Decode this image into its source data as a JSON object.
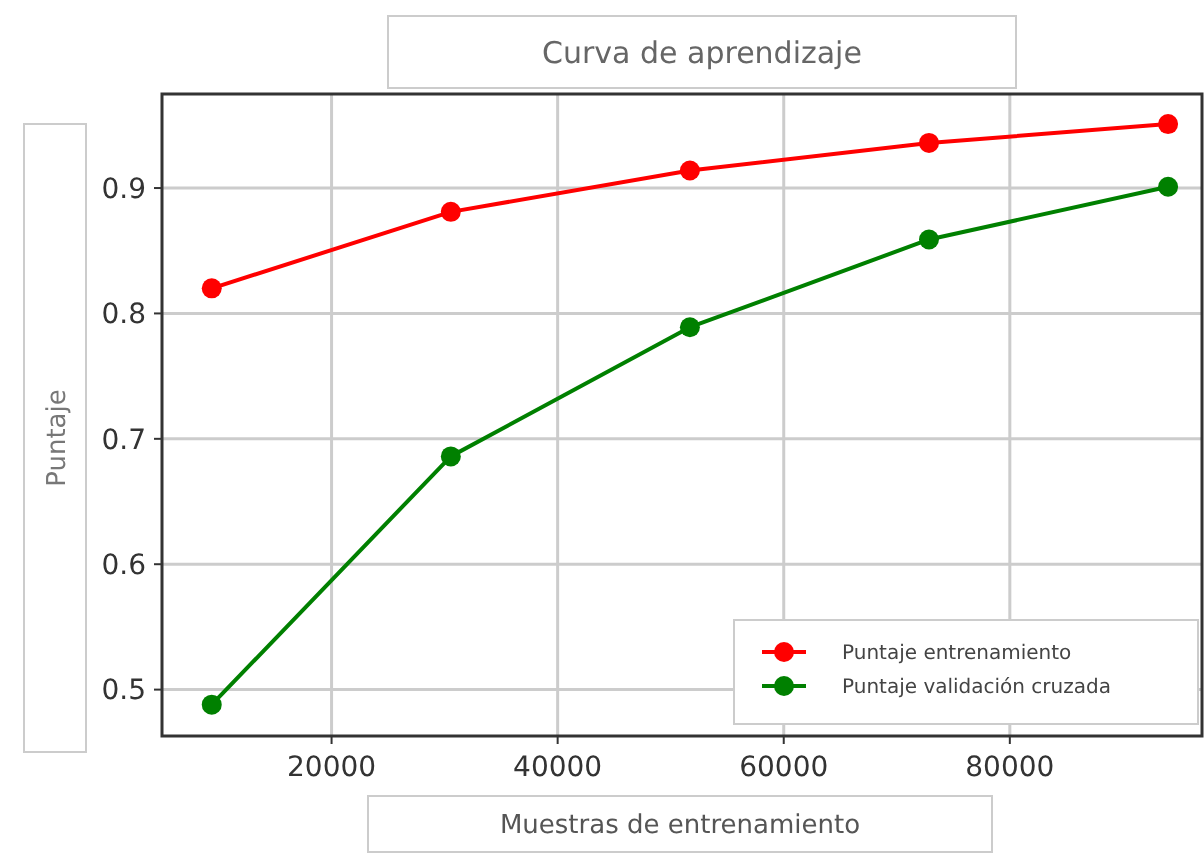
{
  "chart_data": {
    "type": "line",
    "title": "Curva de aprendizaje",
    "xlabel": "Muestras de entrenamiento",
    "ylabel": "Puntaje",
    "x": [
      9400,
      30550,
      51700,
      72850,
      94000
    ],
    "series": [
      {
        "name": "Puntaje entrenamiento",
        "color": "#ff0000",
        "values": [
          0.82,
          0.881,
          0.914,
          0.936,
          0.951
        ]
      },
      {
        "name": "Puntaje validación cruzada",
        "color": "#008000",
        "values": [
          0.488,
          0.686,
          0.789,
          0.859,
          0.901
        ]
      }
    ],
    "xlim": [
      5000,
      97000
    ],
    "xticks": [
      20000,
      40000,
      60000,
      80000
    ],
    "ylim": [
      0.463,
      0.975
    ],
    "yticks": [
      0.5,
      0.6,
      0.7,
      0.8,
      0.9
    ],
    "grid": true,
    "legend": "bottom right",
    "marker": "circle",
    "line_style": "solid"
  }
}
